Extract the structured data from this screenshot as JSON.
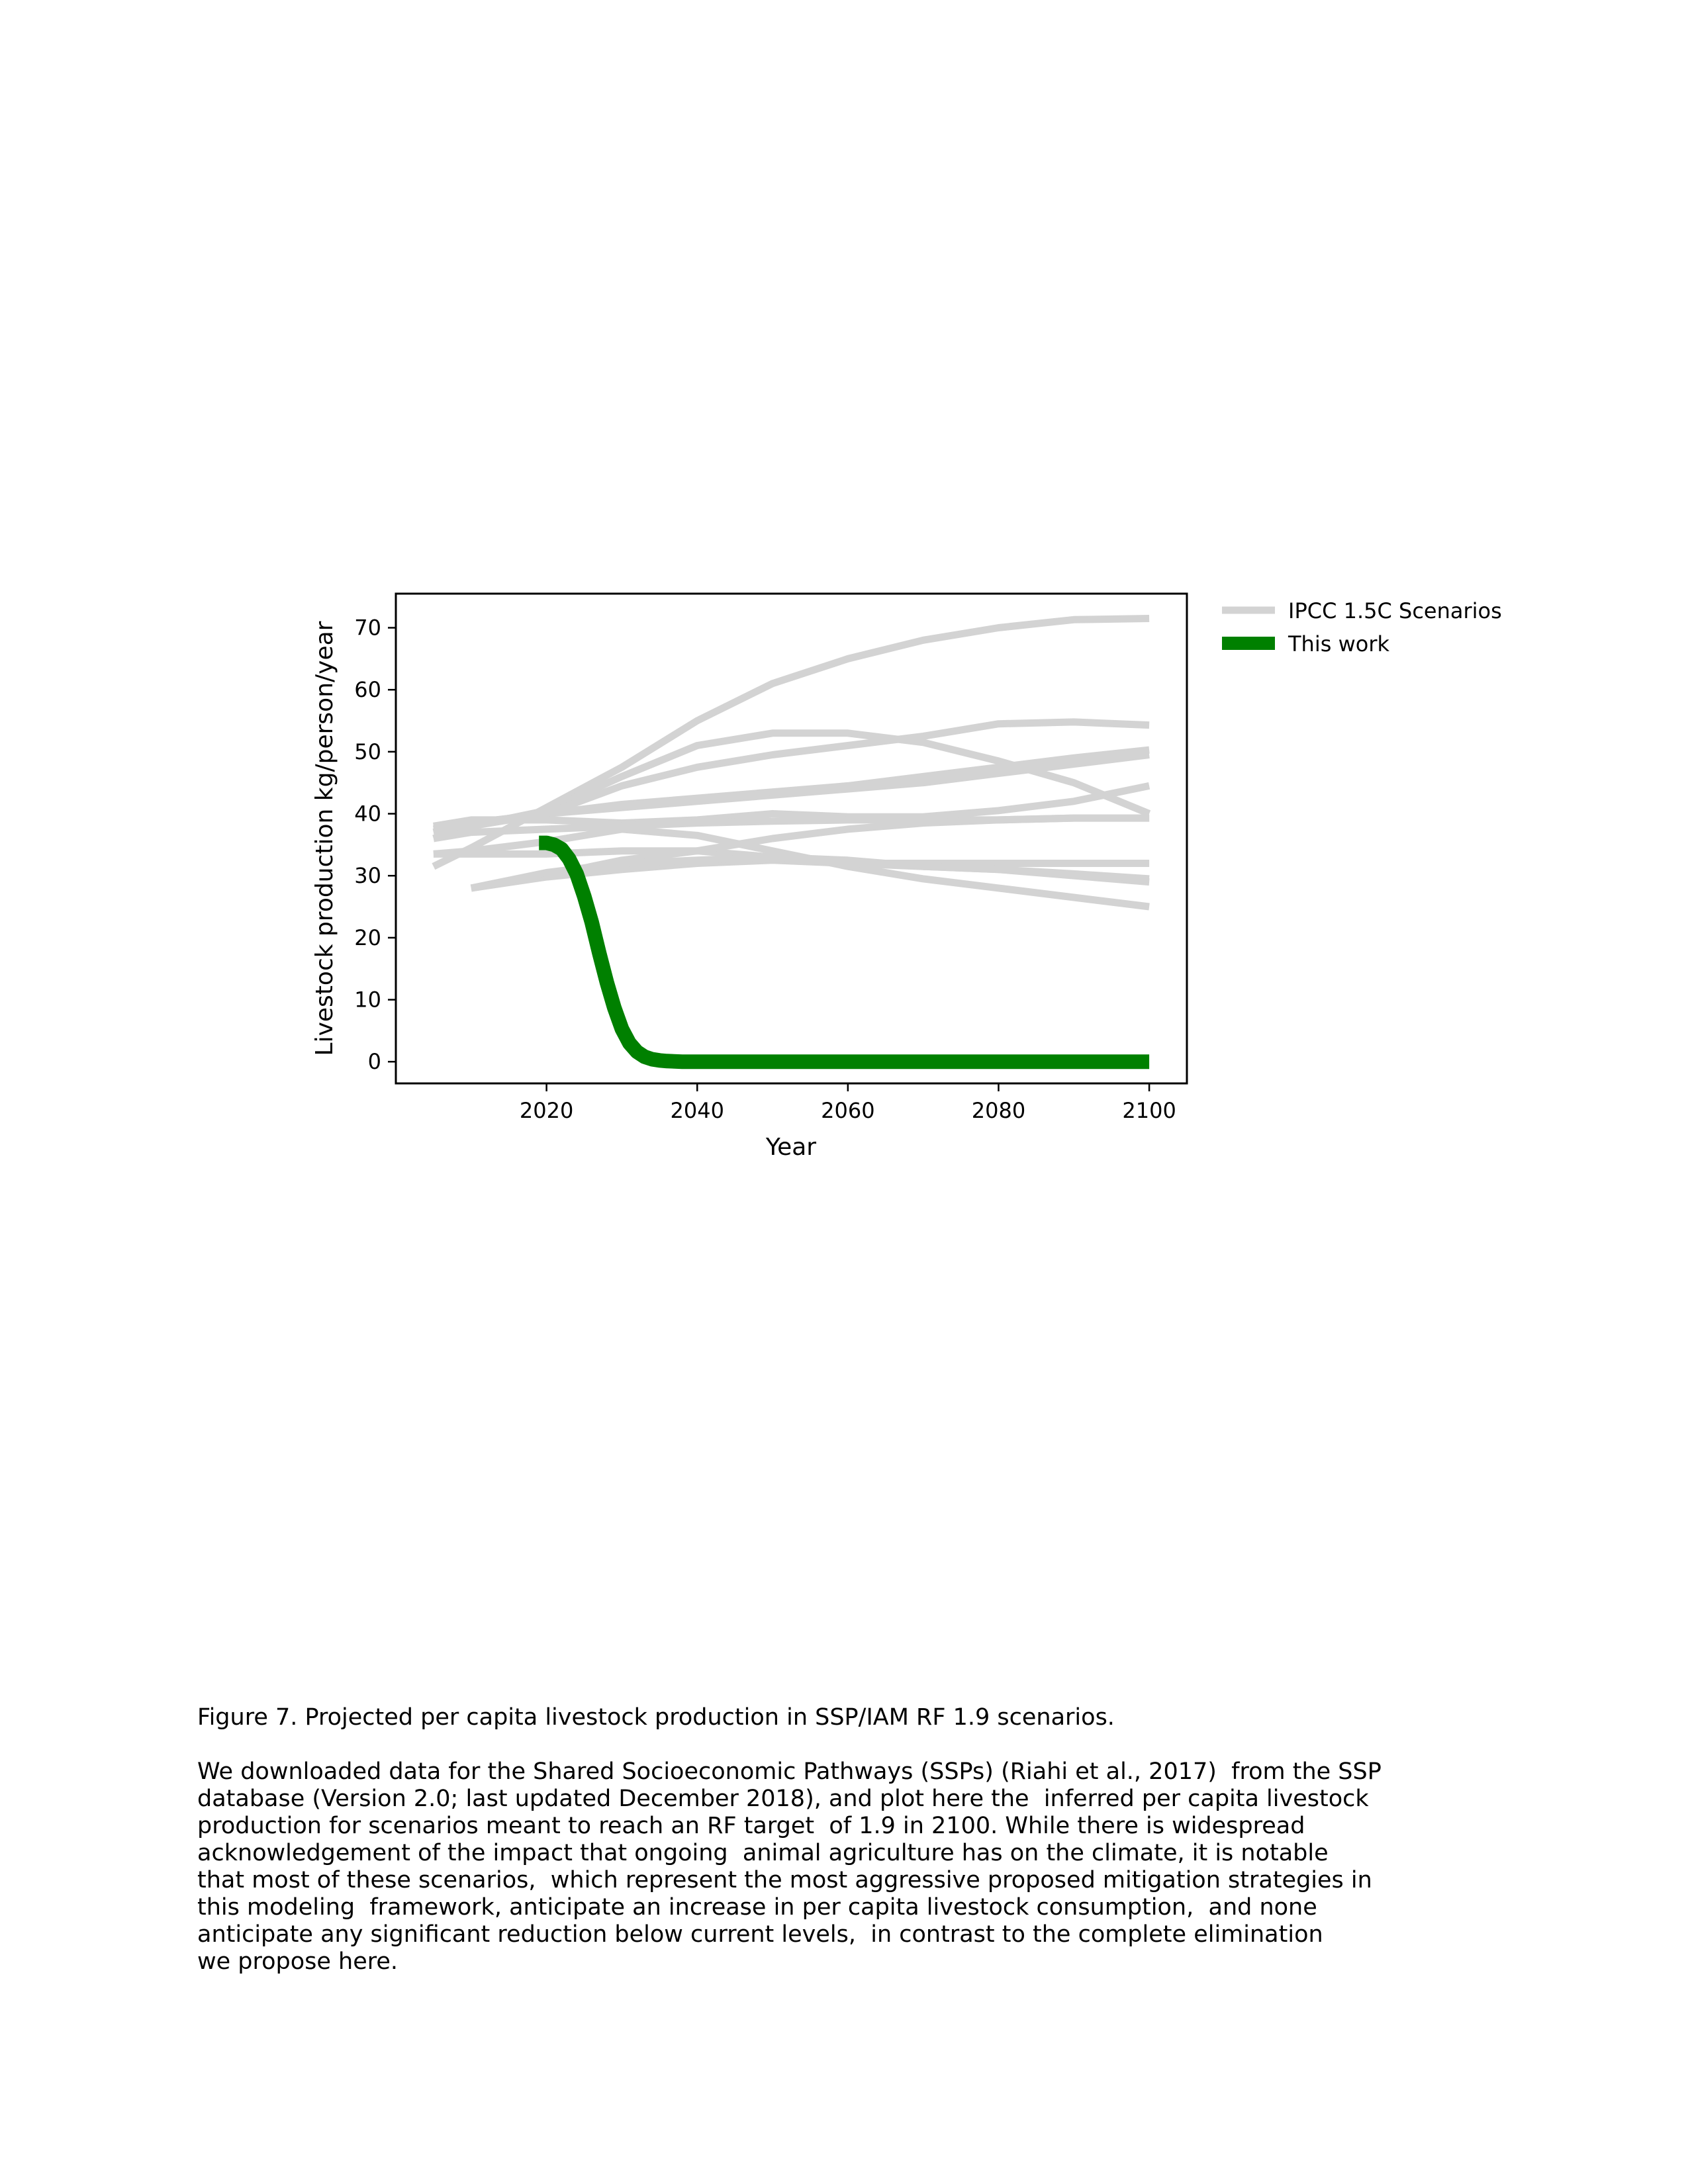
{
  "chart_data": {
    "type": "line",
    "xlabel": "Year",
    "ylabel": "Livestock production kg/person/year",
    "xlim": [
      2000,
      2105
    ],
    "ylim": [
      -3.5,
      75.5
    ],
    "xticks": [
      2020,
      2040,
      2060,
      2080,
      2100
    ],
    "yticks": [
      0,
      10,
      20,
      30,
      40,
      50,
      60,
      70
    ],
    "legend_position": "outside-top-right",
    "grid": false,
    "legend": [
      {
        "label": "IPCC 1.5C Scenarios",
        "color": "#d3d3d3",
        "style": "thin"
      },
      {
        "label": "This work",
        "color": "#008000",
        "style": "thick"
      }
    ],
    "scenario_color": "#d3d3d3",
    "this_work_color": "#008000",
    "scenarios": [
      {
        "x": [
          2005,
          2010,
          2020,
          2030,
          2040,
          2050,
          2060,
          2070,
          2080,
          2090,
          2100
        ],
        "y": [
          31.5,
          34.5,
          41,
          47.5,
          55,
          61,
          65,
          68,
          70,
          71.3,
          71.5
        ]
      },
      {
        "x": [
          2005,
          2010,
          2020,
          2030,
          2040,
          2050,
          2060,
          2070,
          2080,
          2090,
          2100
        ],
        "y": [
          37,
          38,
          40.5,
          46,
          51,
          53,
          53,
          51.5,
          48.5,
          45,
          40
        ]
      },
      {
        "x": [
          2005,
          2010,
          2020,
          2030,
          2040,
          2050,
          2060,
          2070,
          2080,
          2090,
          2100
        ],
        "y": [
          36,
          38,
          40,
          44.5,
          47.5,
          49.5,
          51,
          52.5,
          54.5,
          54.8,
          54.3
        ]
      },
      {
        "x": [
          2005,
          2010,
          2020,
          2030,
          2040,
          2050,
          2060,
          2070,
          2080,
          2090,
          2100
        ],
        "y": [
          37,
          38.5,
          40,
          41,
          42,
          43,
          44,
          45,
          46.5,
          48,
          49.5
        ]
      },
      {
        "x": [
          2005,
          2010,
          2020,
          2030,
          2040,
          2050,
          2060,
          2070,
          2080,
          2090,
          2100
        ],
        "y": [
          37.5,
          38.5,
          40,
          41.5,
          42.5,
          43.5,
          44.5,
          46,
          47.5,
          49,
          50.3
        ]
      },
      {
        "x": [
          2005,
          2010,
          2020,
          2030,
          2040,
          2050,
          2060,
          2070,
          2080,
          2090,
          2100
        ],
        "y": [
          38,
          39,
          39,
          38.5,
          39,
          40,
          39.5,
          39.5,
          40.5,
          42,
          44.5
        ]
      },
      {
        "x": [
          2005,
          2010,
          2020,
          2030,
          2040,
          2050,
          2060,
          2070,
          2080,
          2090,
          2100
        ],
        "y": [
          36,
          37,
          37.5,
          38,
          38.5,
          38.8,
          39,
          39,
          39,
          39.3,
          39.3
        ]
      },
      {
        "x": [
          2005,
          2010,
          2020,
          2030,
          2040,
          2050,
          2060,
          2070,
          2080,
          2090,
          2100
        ],
        "y": [
          33.5,
          34,
          35.5,
          37.5,
          36.5,
          34,
          31.5,
          29.5,
          28,
          26.5,
          25
        ]
      },
      {
        "x": [
          2005,
          2010,
          2020,
          2030,
          2040,
          2050,
          2060,
          2070,
          2080,
          2090,
          2100
        ],
        "y": [
          33.5,
          33.5,
          33.5,
          34,
          34,
          33,
          32,
          32,
          32,
          32,
          32
        ]
      },
      {
        "x": [
          2010,
          2020,
          2030,
          2040,
          2050,
          2060,
          2070,
          2080,
          2090,
          2100
        ],
        "y": [
          28,
          29.8,
          31,
          32,
          32.5,
          32,
          31.5,
          31,
          30,
          29
        ]
      },
      {
        "x": [
          2010,
          2020,
          2030,
          2040,
          2050,
          2060,
          2070,
          2080,
          2090,
          2100
        ],
        "y": [
          28,
          30,
          32.5,
          34,
          36,
          37.5,
          38.5,
          39,
          39.3,
          39.3
        ]
      },
      {
        "x": [
          2010,
          2020,
          2030,
          2040,
          2050,
          2060,
          2070,
          2080,
          2090,
          2100
        ],
        "y": [
          28,
          30.5,
          32,
          32.5,
          33,
          32.5,
          31.5,
          31,
          30.3,
          29.5
        ]
      }
    ],
    "this_work": {
      "x": [
        2019,
        2020,
        2021,
        2022,
        2023,
        2024,
        2025,
        2026,
        2027,
        2028,
        2029,
        2030,
        2031,
        2032,
        2033,
        2034,
        2035,
        2036,
        2038,
        2040,
        2050,
        2060,
        2070,
        2080,
        2090,
        2100
      ],
      "y": [
        35.3,
        35.3,
        35.0,
        34.3,
        32.7,
        30.3,
        26.7,
        22.5,
        17.5,
        12.8,
        8.7,
        5.3,
        3.0,
        1.6,
        0.8,
        0.4,
        0.2,
        0.1,
        0,
        0,
        0,
        0,
        0,
        0,
        0,
        0
      ]
    }
  },
  "caption": {
    "title": "Figure 7. Projected per capita livestock production in SSP/IAM RF 1.9 scenarios.",
    "lines": [
      "We downloaded data for the Shared Socioeconomic Pathways (SSPs) (Riahi et al., 2017)  from the SSP",
      "database (Version 2.0; last updated December 2018), and plot here the  inferred per capita livestock",
      "production for scenarios meant to reach an RF target  of 1.9 in 2100. While there is widespread",
      "acknowledgement of the impact that ongoing  animal agriculture has on the climate, it is notable",
      "that most of these scenarios,  which represent the most aggressive proposed mitigation strategies in",
      "this modeling  framework, anticipate an increase in per capita livestock consumption,  and none",
      "anticipate any significant reduction below current levels,  in contrast to the complete elimination",
      "we propose here."
    ]
  }
}
